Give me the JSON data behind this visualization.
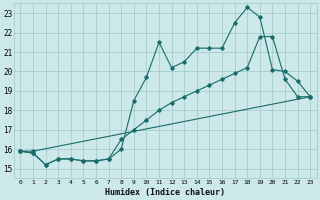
{
  "xlabel": "Humidex (Indice chaleur)",
  "xlim": [
    -0.5,
    23.5
  ],
  "ylim": [
    14.5,
    23.5
  ],
  "xticks": [
    0,
    1,
    2,
    3,
    4,
    5,
    6,
    7,
    8,
    9,
    10,
    11,
    12,
    13,
    14,
    15,
    16,
    17,
    18,
    19,
    20,
    21,
    22,
    23
  ],
  "yticks": [
    15,
    16,
    17,
    18,
    19,
    20,
    21,
    22,
    23
  ],
  "bg_color": "#cce8e8",
  "grid_color": "#a0c8c8",
  "line_color": "#1a6b6b",
  "line1_x": [
    0,
    1,
    2,
    3,
    4,
    5,
    6,
    7,
    8,
    9,
    10,
    11,
    12,
    13,
    14,
    15,
    16,
    17,
    18,
    19,
    20,
    21,
    22,
    23
  ],
  "line1_y": [
    15.9,
    15.8,
    15.2,
    15.5,
    15.5,
    15.4,
    15.4,
    15.5,
    16.0,
    18.5,
    19.7,
    21.5,
    20.2,
    20.5,
    21.2,
    21.2,
    21.2,
    22.5,
    23.3,
    22.8,
    20.1,
    20.0,
    19.5,
    18.7
  ],
  "line2_x": [
    0,
    1,
    2,
    3,
    4,
    5,
    6,
    7,
    8,
    9,
    10,
    11,
    12,
    13,
    14,
    15,
    16,
    17,
    18,
    19,
    20,
    21,
    22,
    23
  ],
  "line2_y": [
    15.9,
    15.8,
    15.2,
    15.5,
    15.5,
    15.4,
    15.4,
    15.5,
    16.5,
    17.0,
    17.5,
    18.0,
    18.4,
    18.7,
    19.0,
    19.3,
    19.6,
    19.9,
    20.2,
    21.8,
    21.8,
    19.6,
    18.7,
    18.7
  ],
  "line3_x": [
    0,
    1,
    23
  ],
  "line3_y": [
    15.9,
    15.9,
    18.7
  ],
  "marker": "D",
  "markersize": 1.8,
  "linewidth": 0.8
}
